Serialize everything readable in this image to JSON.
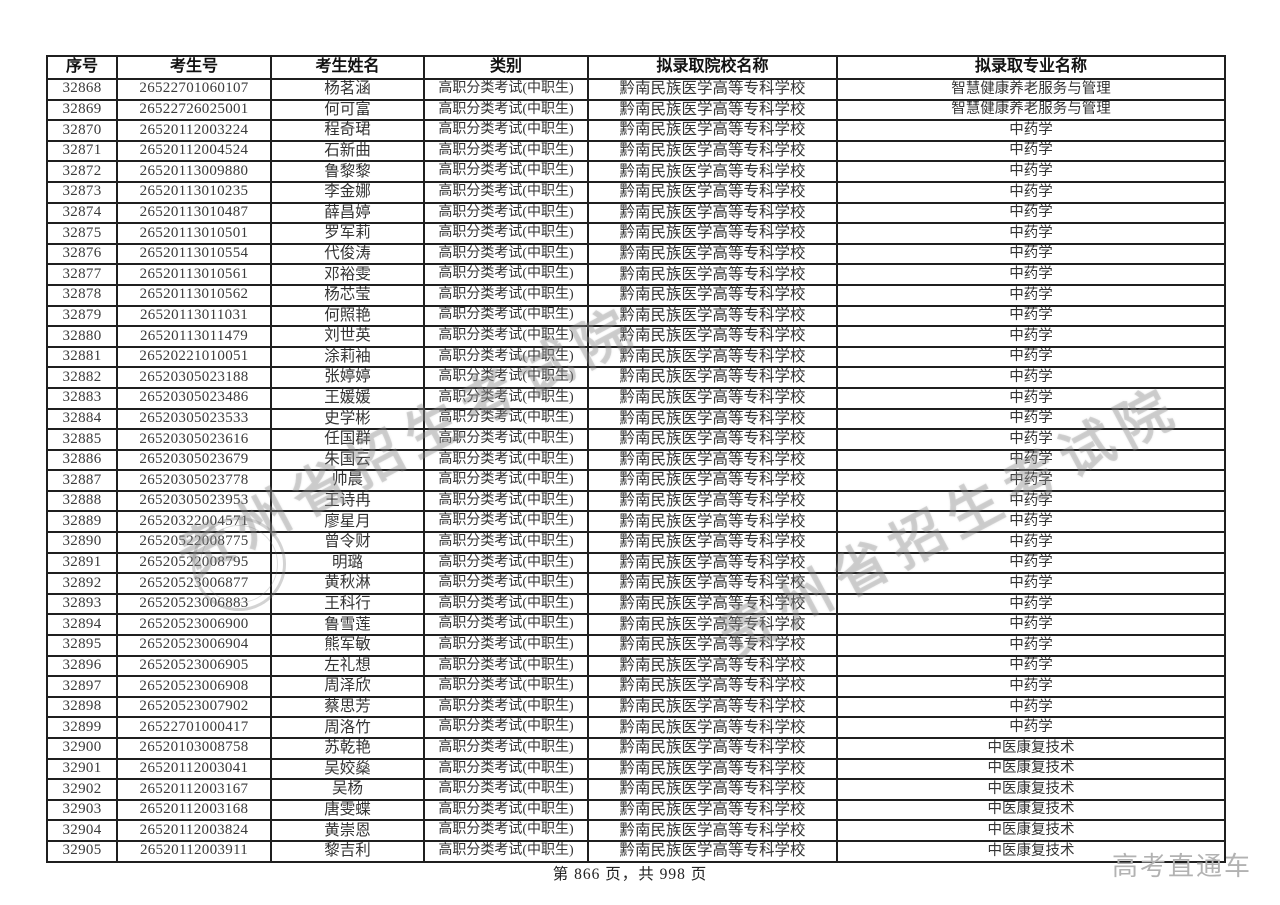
{
  "watermark": {
    "text": "贵州省招生考试院"
  },
  "footer": {
    "page_label": "第 866 页，共 998 页",
    "brand": "高考直通车"
  },
  "colors": {
    "table_border": "#1f1f1f",
    "body_text": "#343434",
    "watermark_gray": "#7d7d7d",
    "brand_gray": "#b2b2b2"
  },
  "table": {
    "headers": [
      "序号",
      "考生号",
      "考生姓名",
      "类别",
      "拟录取院校名称",
      "拟录取专业名称"
    ],
    "rows": [
      [
        "32868",
        "26522701060107",
        "杨茗涵",
        "高职分类考试(中职生)",
        "黔南民族医学高等专科学校",
        "智慧健康养老服务与管理"
      ],
      [
        "32869",
        "26522726025001",
        "何可富",
        "高职分类考试(中职生)",
        "黔南民族医学高等专科学校",
        "智慧健康养老服务与管理"
      ],
      [
        "32870",
        "26520112003224",
        "程奇珺",
        "高职分类考试(中职生)",
        "黔南民族医学高等专科学校",
        "中药学"
      ],
      [
        "32871",
        "26520112004524",
        "石新曲",
        "高职分类考试(中职生)",
        "黔南民族医学高等专科学校",
        "中药学"
      ],
      [
        "32872",
        "26520113009880",
        "鲁黎黎",
        "高职分类考试(中职生)",
        "黔南民族医学高等专科学校",
        "中药学"
      ],
      [
        "32873",
        "26520113010235",
        "李金娜",
        "高职分类考试(中职生)",
        "黔南民族医学高等专科学校",
        "中药学"
      ],
      [
        "32874",
        "26520113010487",
        "薛昌婷",
        "高职分类考试(中职生)",
        "黔南民族医学高等专科学校",
        "中药学"
      ],
      [
        "32875",
        "26520113010501",
        "罗军莉",
        "高职分类考试(中职生)",
        "黔南民族医学高等专科学校",
        "中药学"
      ],
      [
        "32876",
        "26520113010554",
        "代俊涛",
        "高职分类考试(中职生)",
        "黔南民族医学高等专科学校",
        "中药学"
      ],
      [
        "32877",
        "26520113010561",
        "邓裕雯",
        "高职分类考试(中职生)",
        "黔南民族医学高等专科学校",
        "中药学"
      ],
      [
        "32878",
        "26520113010562",
        "杨芯莹",
        "高职分类考试(中职生)",
        "黔南民族医学高等专科学校",
        "中药学"
      ],
      [
        "32879",
        "26520113011031",
        "何照艳",
        "高职分类考试(中职生)",
        "黔南民族医学高等专科学校",
        "中药学"
      ],
      [
        "32880",
        "26520113011479",
        "刘世英",
        "高职分类考试(中职生)",
        "黔南民族医学高等专科学校",
        "中药学"
      ],
      [
        "32881",
        "26520221010051",
        "涂莉袖",
        "高职分类考试(中职生)",
        "黔南民族医学高等专科学校",
        "中药学"
      ],
      [
        "32882",
        "26520305023188",
        "张婷婷",
        "高职分类考试(中职生)",
        "黔南民族医学高等专科学校",
        "中药学"
      ],
      [
        "32883",
        "26520305023486",
        "王媛媛",
        "高职分类考试(中职生)",
        "黔南民族医学高等专科学校",
        "中药学"
      ],
      [
        "32884",
        "26520305023533",
        "史学彬",
        "高职分类考试(中职生)",
        "黔南民族医学高等专科学校",
        "中药学"
      ],
      [
        "32885",
        "26520305023616",
        "任国群",
        "高职分类考试(中职生)",
        "黔南民族医学高等专科学校",
        "中药学"
      ],
      [
        "32886",
        "26520305023679",
        "朱国云",
        "高职分类考试(中职生)",
        "黔南民族医学高等专科学校",
        "中药学"
      ],
      [
        "32887",
        "26520305023778",
        "帅晨",
        "高职分类考试(中职生)",
        "黔南民族医学高等专科学校",
        "中药学"
      ],
      [
        "32888",
        "26520305023953",
        "王诗冉",
        "高职分类考试(中职生)",
        "黔南民族医学高等专科学校",
        "中药学"
      ],
      [
        "32889",
        "26520322004571",
        "廖星月",
        "高职分类考试(中职生)",
        "黔南民族医学高等专科学校",
        "中药学"
      ],
      [
        "32890",
        "26520522008775",
        "曾令财",
        "高职分类考试(中职生)",
        "黔南民族医学高等专科学校",
        "中药学"
      ],
      [
        "32891",
        "26520522008795",
        "明璐",
        "高职分类考试(中职生)",
        "黔南民族医学高等专科学校",
        "中药学"
      ],
      [
        "32892",
        "26520523006877",
        "黄秋淋",
        "高职分类考试(中职生)",
        "黔南民族医学高等专科学校",
        "中药学"
      ],
      [
        "32893",
        "26520523006883",
        "王科行",
        "高职分类考试(中职生)",
        "黔南民族医学高等专科学校",
        "中药学"
      ],
      [
        "32894",
        "26520523006900",
        "鲁雪莲",
        "高职分类考试(中职生)",
        "黔南民族医学高等专科学校",
        "中药学"
      ],
      [
        "32895",
        "26520523006904",
        "熊军敏",
        "高职分类考试(中职生)",
        "黔南民族医学高等专科学校",
        "中药学"
      ],
      [
        "32896",
        "26520523006905",
        "左礼想",
        "高职分类考试(中职生)",
        "黔南民族医学高等专科学校",
        "中药学"
      ],
      [
        "32897",
        "26520523006908",
        "周泽欣",
        "高职分类考试(中职生)",
        "黔南民族医学高等专科学校",
        "中药学"
      ],
      [
        "32898",
        "26520523007902",
        "蔡思芳",
        "高职分类考试(中职生)",
        "黔南民族医学高等专科学校",
        "中药学"
      ],
      [
        "32899",
        "26522701000417",
        "周洛竹",
        "高职分类考试(中职生)",
        "黔南民族医学高等专科学校",
        "中药学"
      ],
      [
        "32900",
        "26520103008758",
        "苏乾艳",
        "高职分类考试(中职生)",
        "黔南民族医学高等专科学校",
        "中医康复技术"
      ],
      [
        "32901",
        "26520112003041",
        "吴姣燊",
        "高职分类考试(中职生)",
        "黔南民族医学高等专科学校",
        "中医康复技术"
      ],
      [
        "32902",
        "26520112003167",
        "吴杨",
        "高职分类考试(中职生)",
        "黔南民族医学高等专科学校",
        "中医康复技术"
      ],
      [
        "32903",
        "26520112003168",
        "唐雯蝶",
        "高职分类考试(中职生)",
        "黔南民族医学高等专科学校",
        "中医康复技术"
      ],
      [
        "32904",
        "26520112003824",
        "黄崇恩",
        "高职分类考试(中职生)",
        "黔南民族医学高等专科学校",
        "中医康复技术"
      ],
      [
        "32905",
        "26520112003911",
        "黎吉利",
        "高职分类考试(中职生)",
        "黔南民族医学高等专科学校",
        "中医康复技术"
      ]
    ]
  }
}
